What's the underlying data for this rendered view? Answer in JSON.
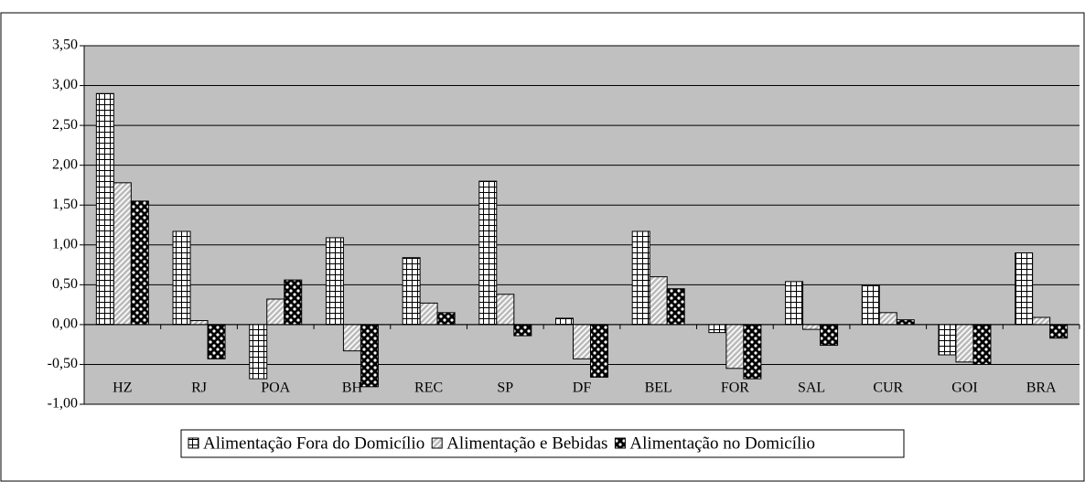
{
  "chart_data": {
    "type": "bar",
    "categories": [
      "HZ",
      "RJ",
      "POA",
      "BH",
      "REC",
      "SP",
      "DF",
      "BEL",
      "FOR",
      "SAL",
      "CUR",
      "GOI",
      "BRA"
    ],
    "series": [
      {
        "name": "Alimentação Fora do Domicílio",
        "values": [
          2.9,
          1.17,
          -0.68,
          1.09,
          0.84,
          1.8,
          0.08,
          1.17,
          -0.1,
          0.54,
          0.49,
          -0.38,
          0.9
        ]
      },
      {
        "name": "Alimentação e Bebidas",
        "values": [
          1.78,
          0.05,
          0.32,
          -0.33,
          0.27,
          0.38,
          -0.43,
          0.6,
          -0.55,
          -0.06,
          0.15,
          -0.47,
          0.09
        ]
      },
      {
        "name": "Alimentação no Domicílio",
        "values": [
          1.55,
          -0.43,
          0.56,
          -0.78,
          0.15,
          -0.14,
          -0.66,
          0.45,
          -0.68,
          -0.26,
          0.06,
          -0.5,
          -0.17
        ]
      }
    ],
    "ylim": [
      -1.0,
      3.5
    ],
    "yticks": [
      {
        "value": -1.0,
        "label": "-1,00"
      },
      {
        "value": -0.5,
        "label": "-0,50"
      },
      {
        "value": 0,
        "label": "0,00"
      },
      {
        "value": 0.5,
        "label": "0,50"
      },
      {
        "value": 1.0,
        "label": "1,00"
      },
      {
        "value": 1.5,
        "label": "1,50"
      },
      {
        "value": 2.0,
        "label": "2,00"
      },
      {
        "value": 2.5,
        "label": "2,50"
      },
      {
        "value": 3.0,
        "label": "3,00"
      },
      {
        "value": 3.5,
        "label": "3,50"
      }
    ],
    "grid": true
  }
}
